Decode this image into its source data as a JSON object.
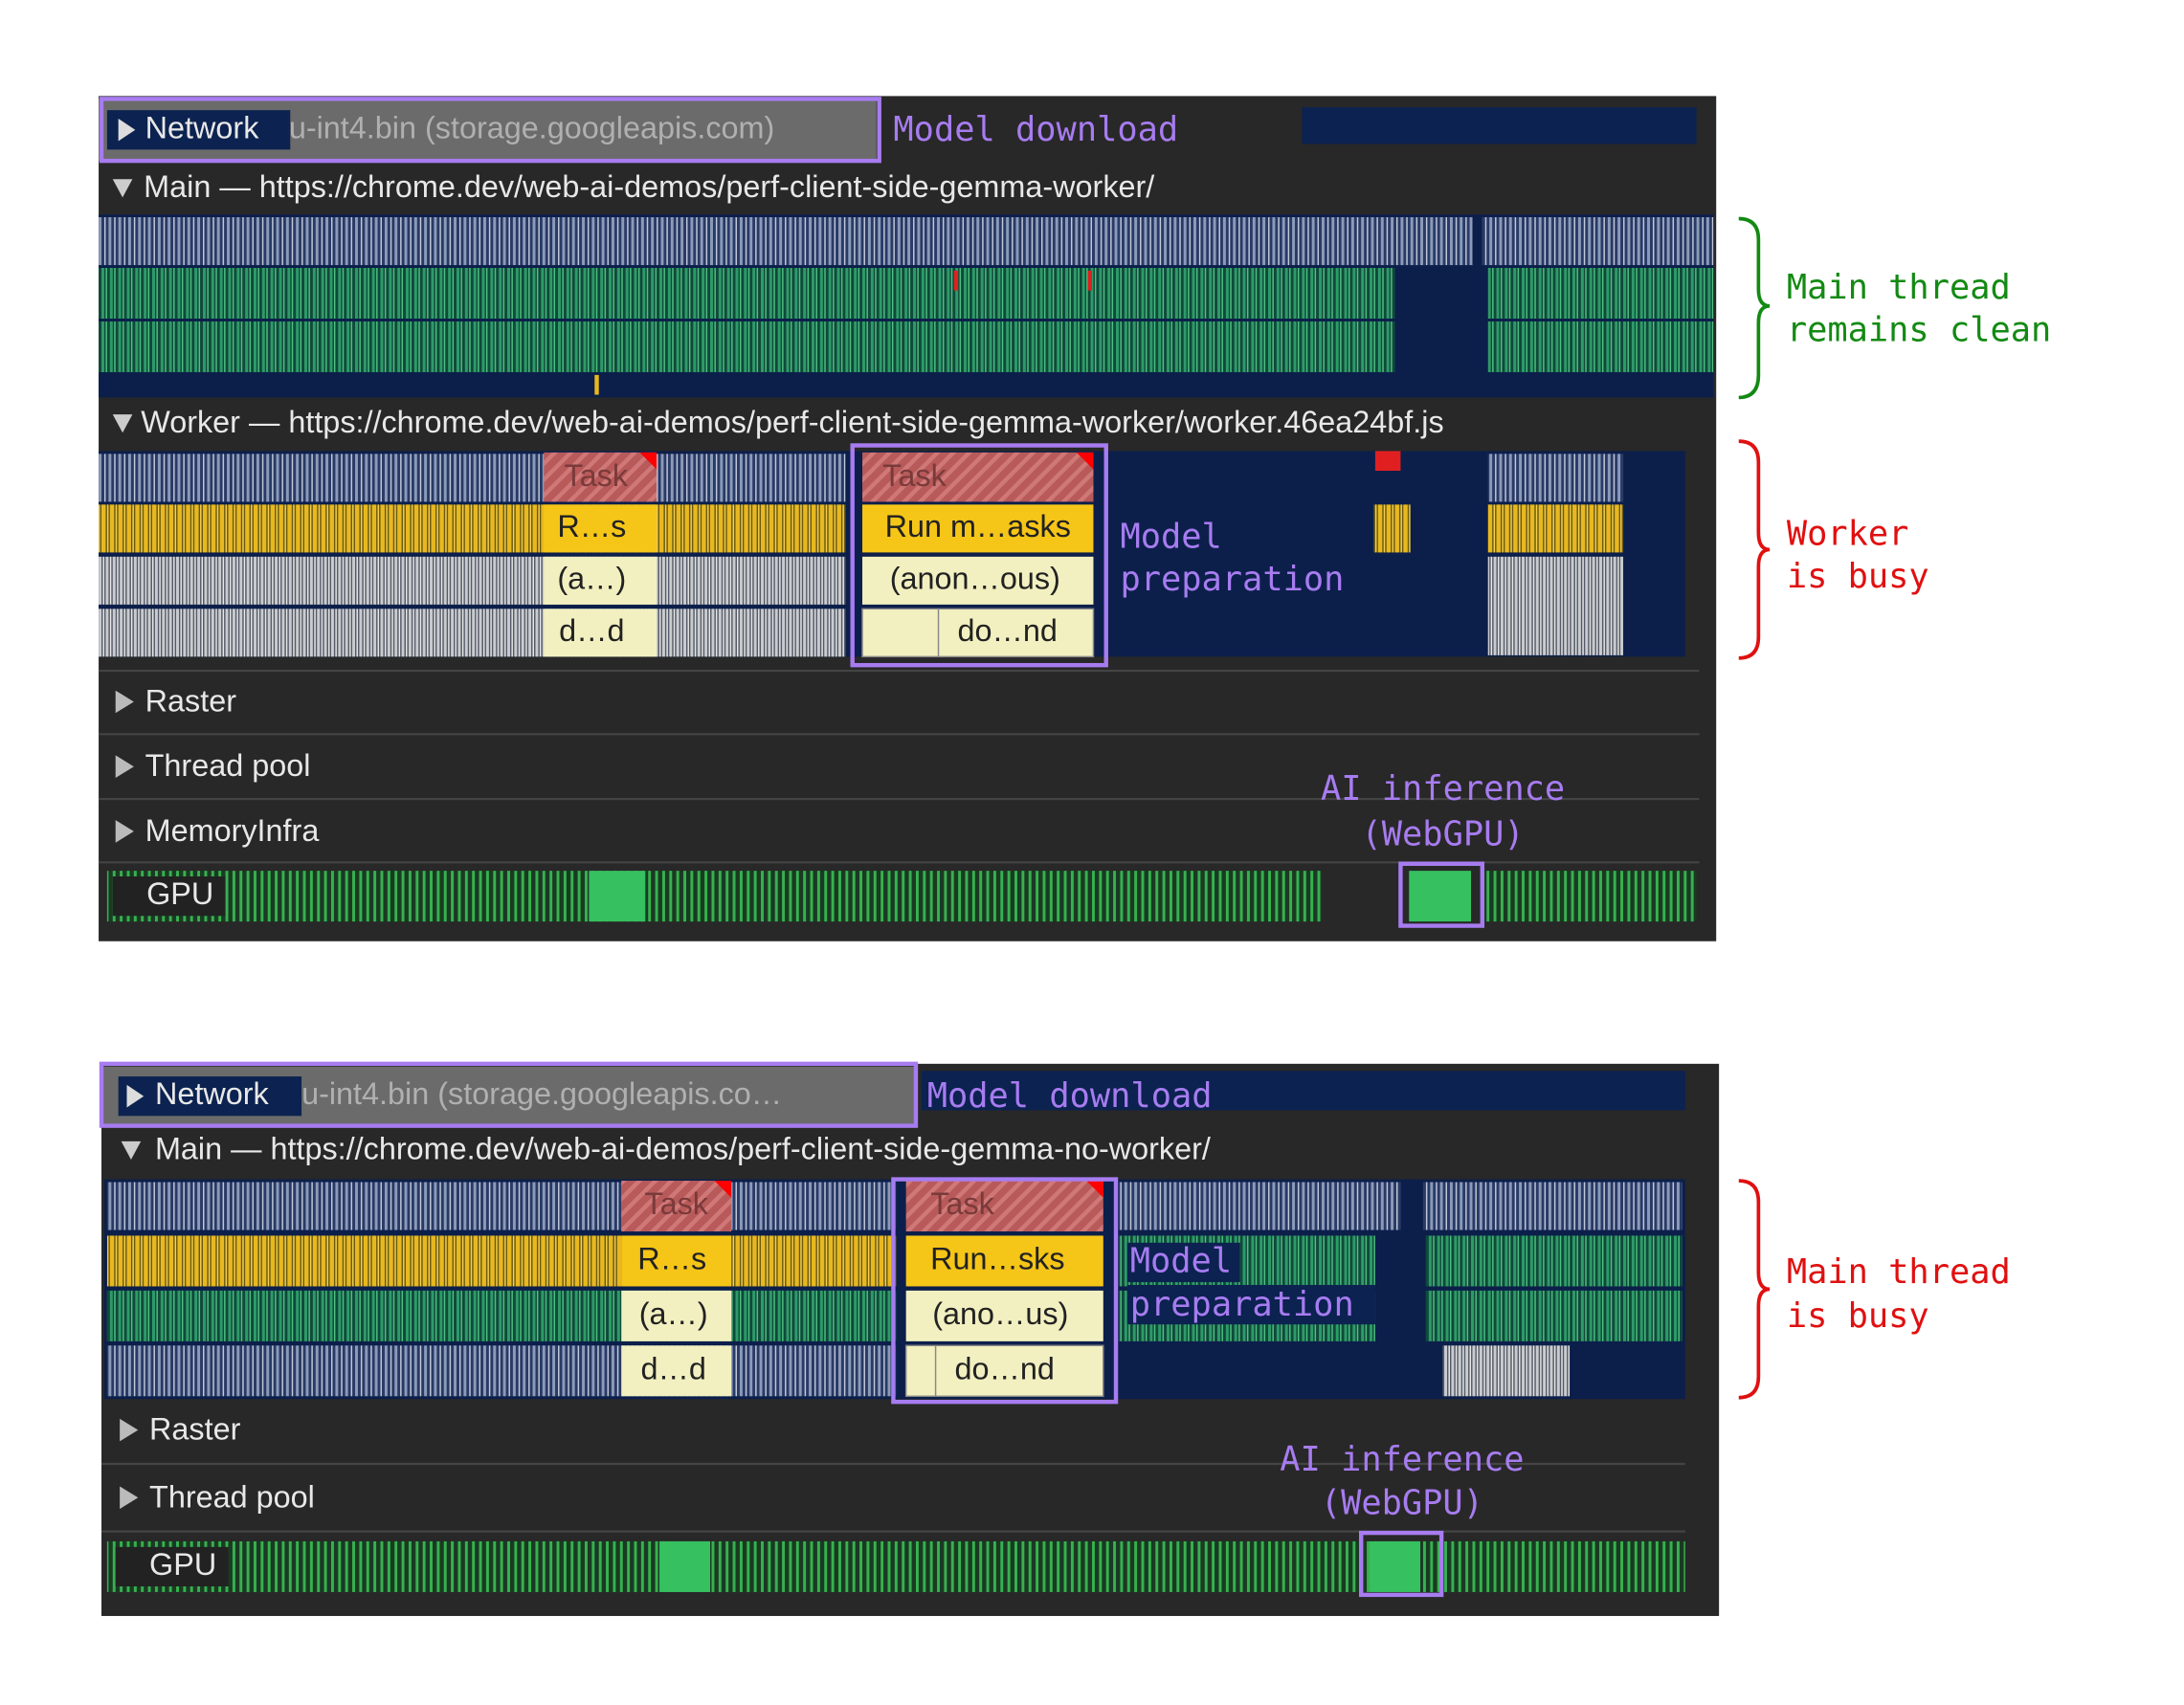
{
  "top": {
    "network": "Network",
    "request": "u-int4.bin (storage.googleapis.com)",
    "download_note": "Model download",
    "main_track": "Main — https://chrome.dev/web-ai-demos/perf-client-side-gemma-worker/",
    "worker_track": "Worker — https://chrome.dev/web-ai-demos/perf-client-side-gemma-worker/worker.46ea24bf.js",
    "flame_a": [
      "Task",
      "R…s",
      "(a…)",
      "d…d"
    ],
    "flame_b": [
      "Task",
      "Run m…asks",
      "(anon…ous)",
      "do…nd"
    ],
    "prep_note": [
      "Model",
      "preparation"
    ],
    "tracks": [
      "Raster",
      "Thread pool",
      "MemoryInfra"
    ],
    "gpu": "GPU",
    "inference_note": [
      "AI inference",
      "(WebGPU)"
    ],
    "side_notes": [
      [
        "Main thread",
        "remains clean"
      ],
      [
        "Worker",
        "is busy"
      ]
    ]
  },
  "bottom": {
    "network": "Network",
    "request": "u-int4.bin (storage.googleapis.co…",
    "download_note": "Model download",
    "main_track": "Main — https://chrome.dev/web-ai-demos/perf-client-side-gemma-no-worker/",
    "flame_a": [
      "Task",
      "R…s",
      "(a…)",
      "d…d"
    ],
    "flame_b": [
      "Task",
      "Run…sks",
      "(ano…us)",
      "do…nd"
    ],
    "prep_note": [
      "Model",
      "preparation"
    ],
    "tracks": [
      "Raster",
      "Thread pool"
    ],
    "gpu": "GPU",
    "inference_note": [
      "AI inference",
      "(WebGPU)"
    ],
    "side_notes": [
      [
        "Main thread",
        "is busy"
      ]
    ]
  }
}
